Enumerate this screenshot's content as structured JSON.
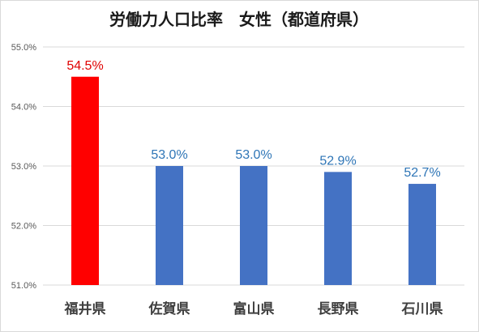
{
  "chart_data": {
    "type": "bar",
    "title": "労働力人口比率　女性（都道府県）",
    "xlabel": "",
    "ylabel": "",
    "categories": [
      "福井県",
      "佐賀県",
      "富山県",
      "長野県",
      "石川県"
    ],
    "values": [
      54.5,
      53.0,
      53.0,
      52.9,
      52.7
    ],
    "data_labels": [
      "54.5%",
      "53.0%",
      "53.0%",
      "52.9%",
      "52.7%"
    ],
    "ylim": [
      51.0,
      55.0
    ],
    "yticks": [
      51.0,
      52.0,
      53.0,
      54.0,
      55.0
    ],
    "ytick_labels": [
      "51.0%",
      "52.0%",
      "53.0%",
      "54.0%",
      "55.0%"
    ],
    "grid": true,
    "legend": "none",
    "highlight_index": 0,
    "colors": {
      "highlight_bar": "#ff0000",
      "highlight_label": "#e00000",
      "bar": "#4472c4",
      "label": "#2e75b6",
      "grid": "#d9d9d9"
    }
  }
}
